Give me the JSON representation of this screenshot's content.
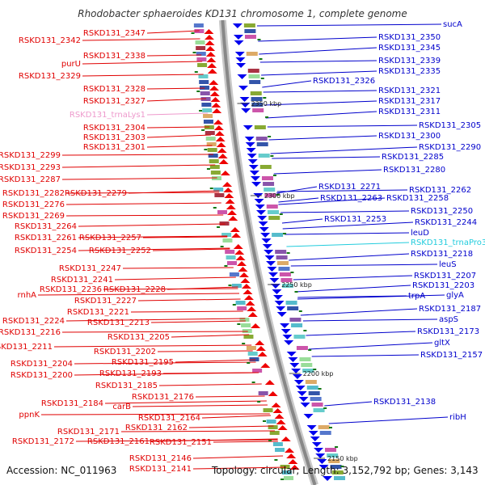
{
  "title": "Rhodobacter sphaeroides KD131 chromosome 1, complete genome",
  "footer": {
    "accession": "Accession: NC_011963",
    "topology": "Topology: circular; Length: 3,152,792 bp; Genes: 3,143"
  },
  "colors": {
    "left_label": "#e00000",
    "right_label": "#0000cc",
    "trna_lys": "#ee99cc",
    "trna_pro": "#22ccdd",
    "forward_arrow": "#ee0000",
    "reverse_arrow": "#0000ee",
    "backbone": "#888888",
    "tick_mark": "#117711"
  },
  "ticks": [
    {
      "label": "2350 kbp"
    },
    {
      "label": "2300 kbp"
    },
    {
      "label": "2250 kbp"
    },
    {
      "label": "2200 kbp"
    },
    {
      "label": "2150 kbp"
    }
  ],
  "left_labels": [
    "RSKD131_2347",
    "RSKD131_2342",
    "RSKD131_2338",
    "purU",
    "RSKD131_2329",
    "RSKD131_2328",
    "RSKD131_2327",
    "RSKD131_trnaLys1",
    "RSKD131_2304",
    "RSKD131_2303",
    "RSKD131_2301",
    "RSKD131_2299",
    "RSKD131_2293",
    "RSKD131_2287",
    "RSKD131_2282",
    "RSKD131_2279",
    "RSKD131_2276",
    "RSKD131_2269",
    "RSKD131_2264",
    "RSKD131_2261",
    "RSKD131_2257",
    "RSKD131_2254",
    "RSKD131_2252",
    "RSKD131_2247",
    "RSKD131_2241",
    "rnhA",
    "RSKD131_2236",
    "RSKD131_2228",
    "RSKD131_2227",
    "RSKD131_2221",
    "RSKD131_2224",
    "RSKD131_2213",
    "RSKD131_2216",
    "RSKD131_2205",
    "RSKD131_2211",
    "RSKD131_2202",
    "RSKD131_2195",
    "RSKD131_2204",
    "RSKD131_2193",
    "RSKD131_2200",
    "RSKD131_2185",
    "RSKD131_2176",
    "RSKD131_2184",
    "carB",
    "ppnK",
    "RSKD131_2164",
    "RSKD131_2162",
    "RSKD131_2171",
    "RSKD131_2161",
    "RSKD131_2172",
    "RSKD131_2151",
    "RSKD131_2146",
    "RSKD131_2141"
  ],
  "right_labels": [
    "sucA",
    "RSKD131_2350",
    "RSKD131_2345",
    "RSKD131_2339",
    "RSKD131_2335",
    "RSKD131_2326",
    "RSKD131_2321",
    "RSKD131_2317",
    "RSKD131_2311",
    "RSKD131_2305",
    "RSKD131_2300",
    "RSKD131_2290",
    "RSKD131_2285",
    "RSKD131_2280",
    "RSKD131_2271",
    "RSKD131_2262",
    "RSKD131_2263",
    "RSKD131_2258",
    "RSKD131_2250",
    "RSKD131_2253",
    "RSKD131_2244",
    "leuD",
    "RSKD131_trnaPro3",
    "RSKD131_2218",
    "leuS",
    "RSKD131_2207",
    "RSKD131_2203",
    "trpA",
    "glyA",
    "RSKD131_2187",
    "aspS",
    "RSKD131_2173",
    "gltX",
    "RSKD131_2157",
    "RSKD131_2138",
    "ribH"
  ]
}
